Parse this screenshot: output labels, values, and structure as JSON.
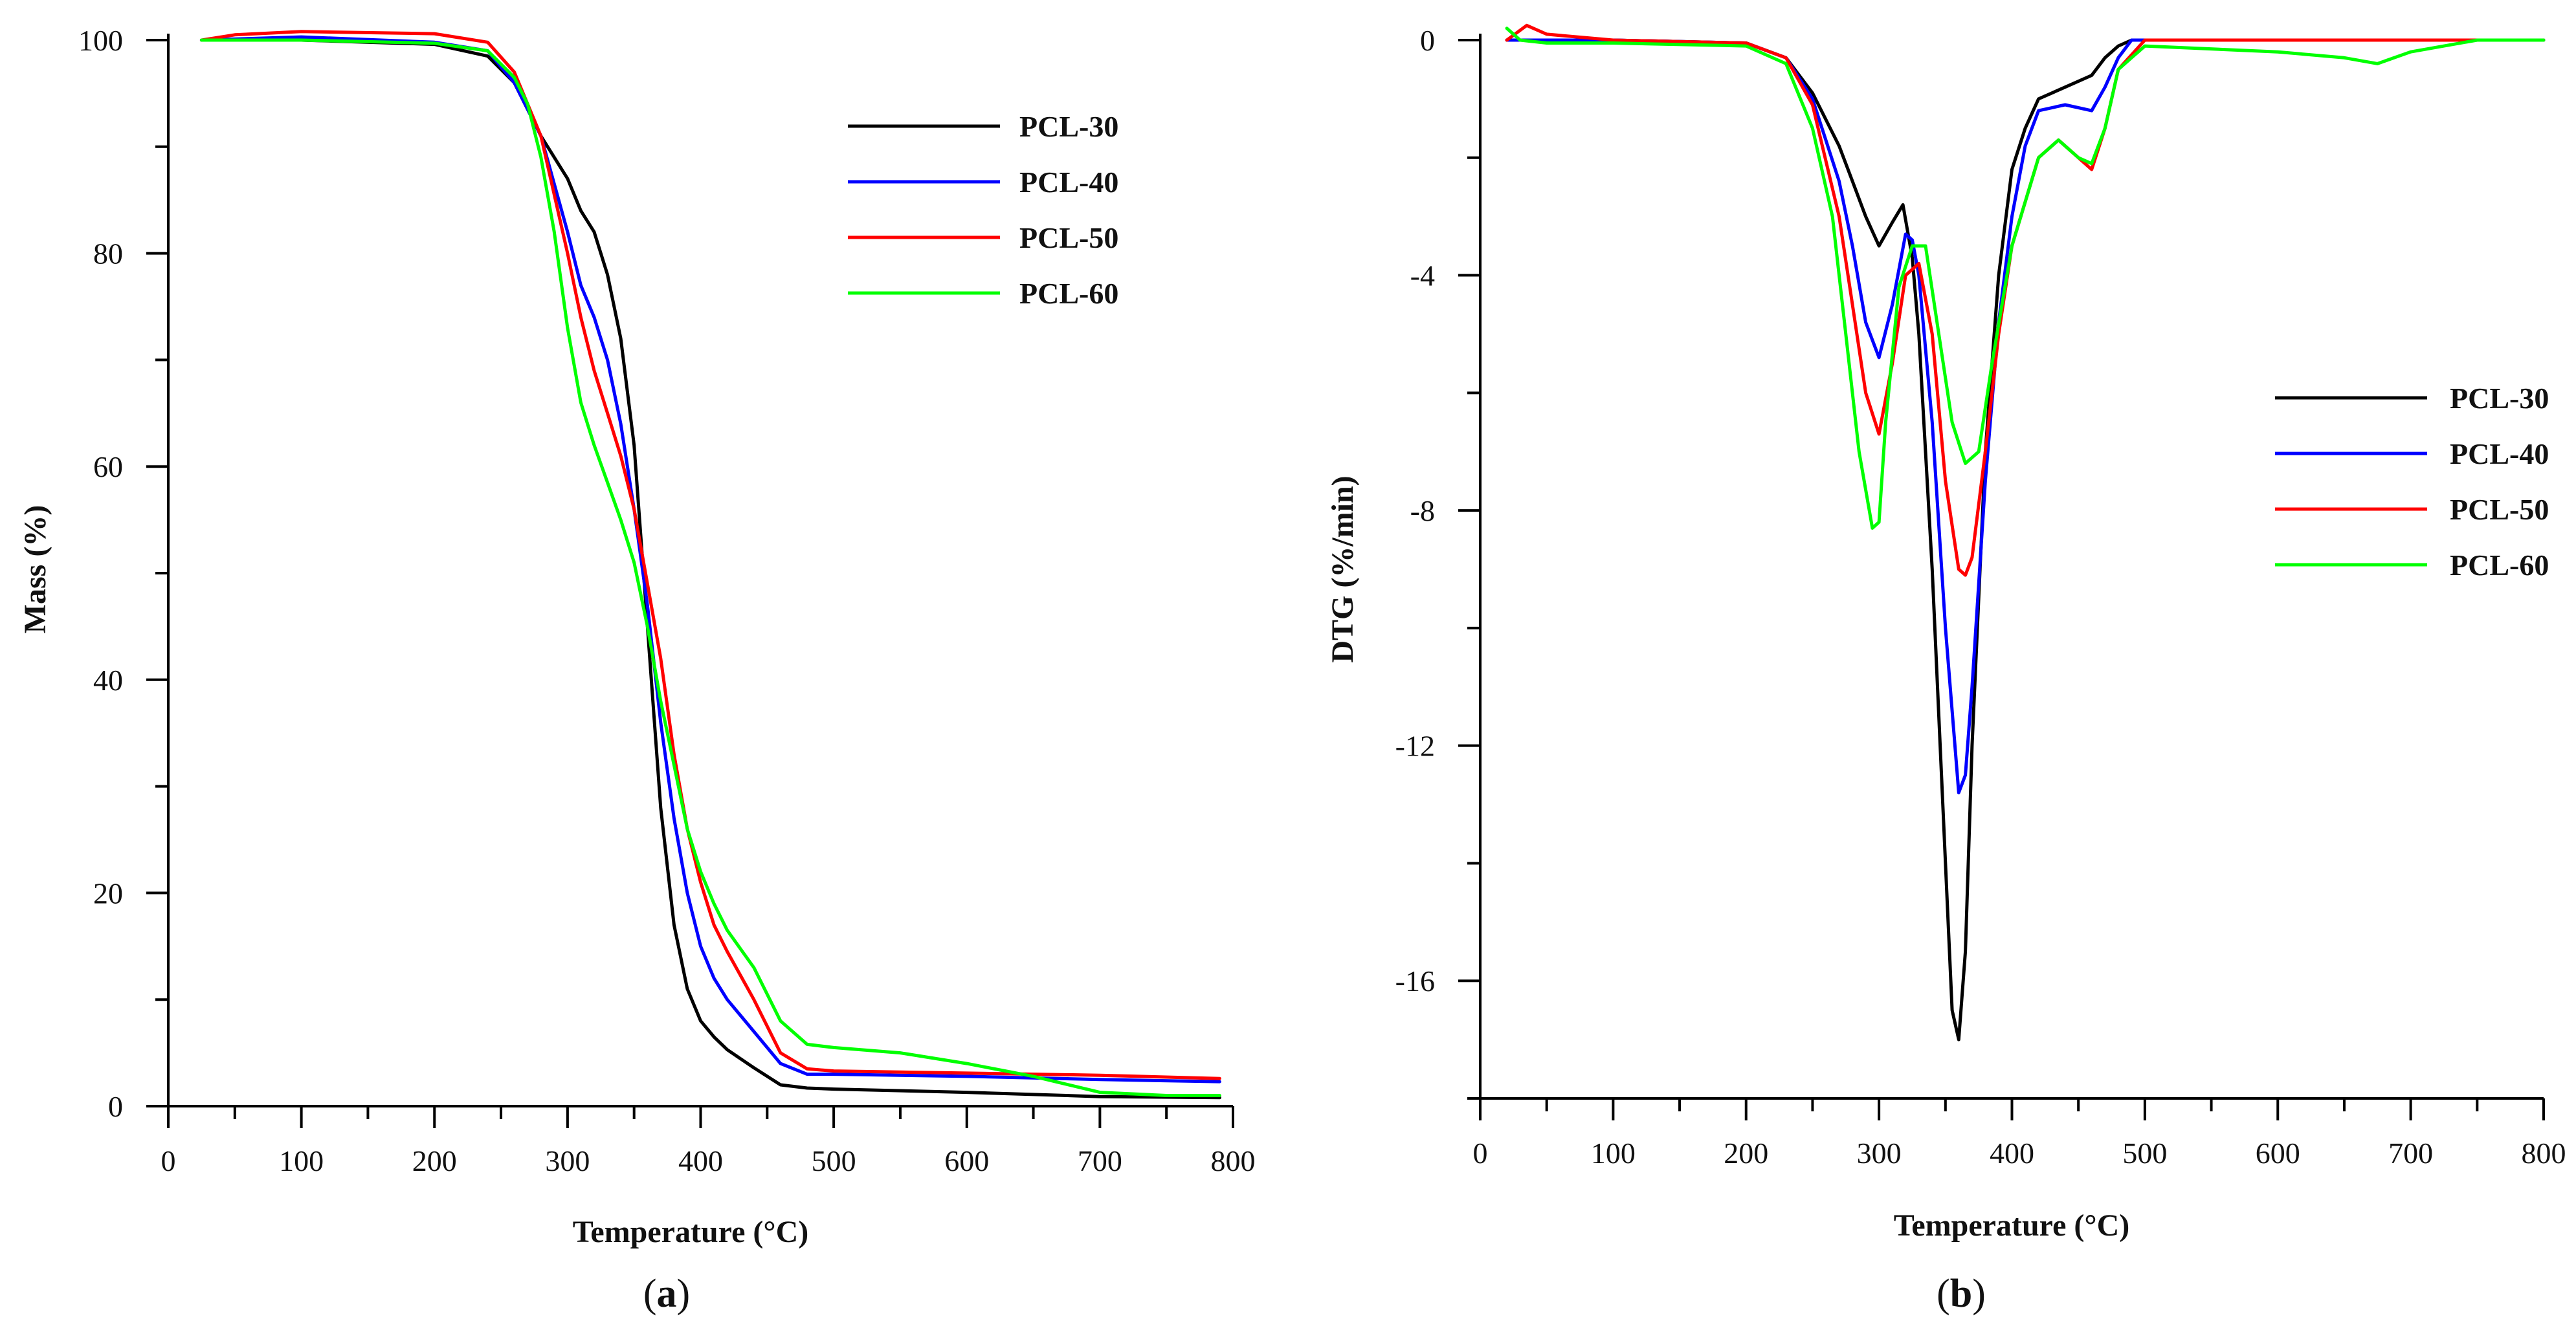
{
  "chart_data": [
    {
      "panel": "a",
      "panel_label": "a",
      "type": "line",
      "title": "",
      "xlabel": "Temperature (°C)",
      "ylabel": "Mass (%)",
      "xlim": [
        0,
        800
      ],
      "ylim": [
        0,
        100
      ],
      "xticks": [
        0,
        100,
        200,
        300,
        400,
        500,
        600,
        700,
        800
      ],
      "yticks": [
        0,
        20,
        40,
        60,
        80,
        100
      ],
      "grid": false,
      "legend_position": "top-right",
      "series": [
        {
          "name": "PCL-30",
          "color": "#000000",
          "x": [
            25,
            100,
            200,
            240,
            260,
            280,
            300,
            310,
            320,
            330,
            340,
            350,
            360,
            370,
            380,
            390,
            400,
            410,
            420,
            440,
            460,
            480,
            500,
            600,
            700,
            790
          ],
          "y": [
            100,
            100,
            99.6,
            98.5,
            96,
            91,
            87,
            84,
            82,
            78,
            72,
            62,
            45,
            28,
            17,
            11,
            8,
            6.5,
            5.3,
            3.6,
            2,
            1.7,
            1.6,
            1.3,
            0.9,
            0.8
          ]
        },
        {
          "name": "PCL-40",
          "color": "#0000ff",
          "x": [
            25,
            100,
            200,
            240,
            260,
            280,
            300,
            310,
            320,
            330,
            340,
            350,
            360,
            370,
            380,
            390,
            400,
            410,
            420,
            440,
            460,
            480,
            500,
            600,
            700,
            790
          ],
          "y": [
            100,
            100.3,
            99.8,
            99,
            96,
            91,
            82,
            77,
            74,
            70,
            64,
            56,
            47,
            36,
            27,
            20,
            15,
            12,
            10,
            7,
            4,
            3,
            3,
            2.8,
            2.5,
            2.3
          ]
        },
        {
          "name": "PCL-50",
          "color": "#ff0000",
          "x": [
            25,
            50,
            100,
            200,
            240,
            260,
            280,
            300,
            310,
            320,
            330,
            340,
            350,
            360,
            370,
            380,
            390,
            400,
            410,
            420,
            440,
            460,
            480,
            500,
            600,
            700,
            790
          ],
          "y": [
            100,
            100.5,
            100.8,
            100.6,
            99.8,
            97,
            91,
            80,
            74,
            69,
            65,
            61,
            56,
            49,
            42,
            33,
            26,
            21,
            17,
            14.5,
            10,
            5,
            3.5,
            3.3,
            3.1,
            2.9,
            2.6
          ]
        },
        {
          "name": "PCL-60",
          "color": "#00ff00",
          "x": [
            25,
            100,
            200,
            240,
            260,
            270,
            280,
            290,
            300,
            310,
            320,
            330,
            340,
            350,
            360,
            370,
            380,
            390,
            400,
            410,
            420,
            440,
            460,
            480,
            500,
            550,
            600,
            650,
            700,
            750,
            790
          ],
          "y": [
            100,
            100,
            99.7,
            99,
            96.5,
            94,
            89,
            82,
            73,
            66,
            62,
            58.5,
            55,
            51,
            45,
            38,
            32,
            26,
            22,
            19,
            16.5,
            13,
            8,
            5.8,
            5.5,
            5,
            4,
            2.8,
            1.3,
            1,
            1
          ]
        }
      ]
    },
    {
      "panel": "b",
      "panel_label": "b",
      "type": "line",
      "title": "",
      "xlabel": "Temperature (°C)",
      "ylabel": "DTG (%/min)",
      "xlim": [
        0,
        800
      ],
      "ylim": [
        -18,
        0
      ],
      "xticks": [
        0,
        100,
        200,
        300,
        400,
        500,
        600,
        700,
        800
      ],
      "yticks": [
        0,
        -4,
        -8,
        -12,
        -16
      ],
      "grid": false,
      "legend_position": "right",
      "series": [
        {
          "name": "PCL-30",
          "color": "#000000",
          "x": [
            20,
            100,
            200,
            230,
            250,
            270,
            280,
            290,
            300,
            310,
            318,
            325,
            330,
            340,
            350,
            355,
            360,
            365,
            370,
            380,
            390,
            400,
            410,
            420,
            440,
            460,
            470,
            480,
            490,
            600,
            800
          ],
          "y": [
            0,
            0,
            -0.05,
            -0.3,
            -0.9,
            -1.8,
            -2.4,
            -3,
            -3.5,
            -3.1,
            -2.8,
            -3.7,
            -5,
            -9,
            -14,
            -16.5,
            -17,
            -15.5,
            -12,
            -7,
            -4,
            -2.2,
            -1.5,
            -1,
            -0.8,
            -0.6,
            -0.3,
            -0.1,
            0,
            0,
            0
          ]
        },
        {
          "name": "PCL-40",
          "color": "#0000ff",
          "x": [
            20,
            100,
            200,
            230,
            250,
            270,
            280,
            290,
            300,
            310,
            320,
            325,
            330,
            340,
            350,
            360,
            365,
            370,
            380,
            390,
            400,
            410,
            420,
            440,
            460,
            470,
            480,
            490,
            600,
            800
          ],
          "y": [
            0,
            0,
            -0.05,
            -0.3,
            -1,
            -2.4,
            -3.5,
            -4.8,
            -5.4,
            -4.5,
            -3.3,
            -3.4,
            -4,
            -6.5,
            -10,
            -12.8,
            -12.5,
            -11,
            -7.5,
            -4.8,
            -3,
            -1.8,
            -1.2,
            -1.1,
            -1.2,
            -0.8,
            -0.3,
            0,
            0,
            0
          ]
        },
        {
          "name": "PCL-50",
          "color": "#ff0000",
          "x": [
            20,
            35,
            50,
            100,
            200,
            230,
            250,
            270,
            280,
            290,
            300,
            310,
            320,
            330,
            340,
            350,
            360,
            365,
            370,
            380,
            390,
            400,
            420,
            435,
            450,
            460,
            470,
            480,
            500,
            600,
            800
          ],
          "y": [
            0,
            0.25,
            0.1,
            0,
            -0.05,
            -0.3,
            -1.1,
            -3,
            -4.5,
            -6,
            -6.7,
            -5.5,
            -4,
            -3.8,
            -5,
            -7.5,
            -9,
            -9.1,
            -8.8,
            -7,
            -5,
            -3.5,
            -2,
            -1.7,
            -2,
            -2.2,
            -1.5,
            -0.5,
            0,
            0,
            0
          ]
        },
        {
          "name": "PCL-60",
          "color": "#00ff00",
          "x": [
            20,
            30,
            50,
            100,
            200,
            230,
            250,
            265,
            275,
            285,
            295,
            300,
            305,
            315,
            325,
            335,
            345,
            355,
            365,
            375,
            385,
            400,
            420,
            435,
            450,
            460,
            470,
            480,
            500,
            600,
            650,
            675,
            700,
            750,
            800
          ],
          "y": [
            0.2,
            0,
            -0.05,
            -0.05,
            -0.1,
            -0.4,
            -1.5,
            -3,
            -5,
            -7,
            -8.3,
            -8.2,
            -6.5,
            -4.2,
            -3.5,
            -3.5,
            -5,
            -6.5,
            -7.2,
            -7,
            -5.5,
            -3.5,
            -2,
            -1.7,
            -2,
            -2.1,
            -1.5,
            -0.5,
            -0.1,
            -0.2,
            -0.3,
            -0.4,
            -0.2,
            0,
            0
          ]
        }
      ]
    }
  ]
}
